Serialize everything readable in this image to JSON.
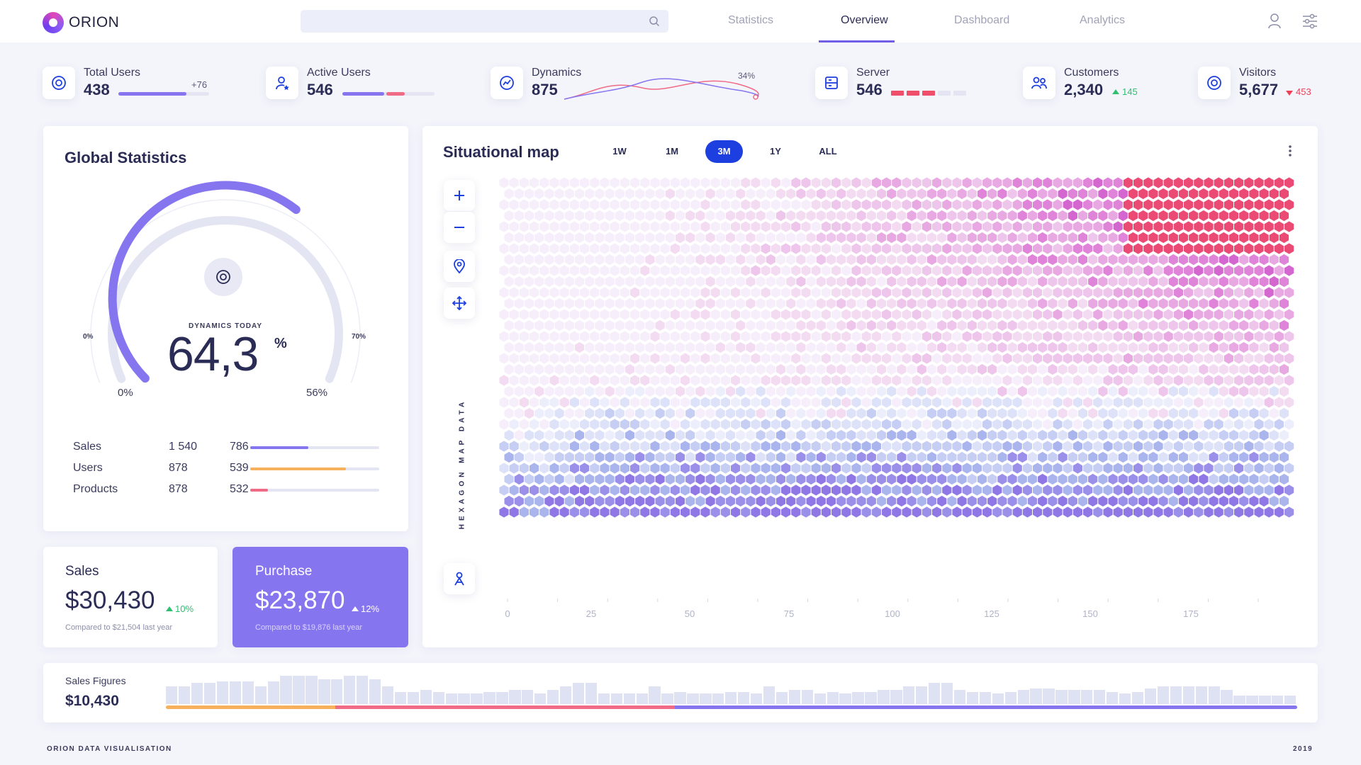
{
  "app": {
    "brand": "ORION"
  },
  "search": {
    "placeholder": ""
  },
  "nav": {
    "tabs": [
      {
        "label": "Statistics"
      },
      {
        "label": "Overview"
      },
      {
        "label": "Dashboard"
      },
      {
        "label": "Analytics"
      }
    ],
    "active": "Overview"
  },
  "stats": [
    {
      "label": "Total Users",
      "value": "438",
      "delta": "+76",
      "progress": 0.75
    },
    {
      "label": "Active Users",
      "value": "546",
      "progress": [
        0.45,
        0.2
      ]
    },
    {
      "label": "Dynamics",
      "value": "875",
      "delta": "34%"
    },
    {
      "label": "Server",
      "value": "546"
    },
    {
      "label": "Customers",
      "value": "2,340",
      "delta": "145",
      "trend": "up"
    },
    {
      "label": "Visitors",
      "value": "5,677",
      "delta": "453",
      "trend": "down"
    }
  ],
  "global": {
    "title": "Global Statistics",
    "caption": "DYNAMICS TODAY",
    "value": "64,3",
    "unit": "%",
    "outer_min": "0%",
    "outer_max": "70%",
    "inner_min": "0%",
    "inner_max": "56%",
    "gauge_level": 0.643,
    "rows": [
      {
        "label": "Sales",
        "a": "1 540",
        "b": "786",
        "progress": 0.45,
        "color": "#8576f0"
      },
      {
        "label": "Users",
        "a": "878",
        "b": "539",
        "progress": 0.74,
        "color": "#f7b05b"
      },
      {
        "label": "Products",
        "a": "878",
        "b": "532",
        "progress": 0.14,
        "color": "#f06b86"
      }
    ]
  },
  "sales": {
    "label": "Sales",
    "value": "$30,430",
    "delta": "10%",
    "note": "Compared to $21,504 last year"
  },
  "purchase": {
    "label": "Purchase",
    "value": "$23,870",
    "delta": "12%",
    "note": "Compared to $19,876 last year"
  },
  "map": {
    "title": "Situational map",
    "ranges": [
      "1W",
      "1M",
      "3M",
      "1Y",
      "ALL"
    ],
    "active_range": "3M",
    "side_label": "HEXAGON MAP DATA",
    "x_ticks": [
      "0",
      "25",
      "50",
      "75",
      "100",
      "125",
      "150",
      "175"
    ]
  },
  "sales_figures": {
    "label": "Sales Figures",
    "value": "$10,430",
    "bars": [
      1,
      1,
      1.2,
      1.2,
      1.3,
      1.3,
      1.3,
      1,
      1.3,
      1.6,
      1.6,
      1.6,
      1.4,
      1.4,
      1.6,
      1.6,
      1.4,
      1,
      0.7,
      0.7,
      0.8,
      0.7,
      0.6,
      0.6,
      0.6,
      0.7,
      0.7,
      0.8,
      0.8,
      0.6,
      0.8,
      1,
      1.2,
      1.2,
      0.6,
      0.6,
      0.6,
      0.6,
      1,
      0.6,
      0.7,
      0.6,
      0.6,
      0.6,
      0.7,
      0.7,
      0.6,
      1,
      0.7,
      0.8,
      0.8,
      0.6,
      0.7,
      0.6,
      0.7,
      0.7,
      0.8,
      0.8,
      1,
      1,
      1.2,
      1.2,
      0.8,
      0.7,
      0.7,
      0.6,
      0.7,
      0.8,
      0.9,
      0.9,
      0.8,
      0.8,
      0.8,
      0.8,
      0.7,
      0.6,
      0.7,
      0.9,
      1,
      1,
      1,
      1,
      1,
      0.8,
      0.5,
      0.5,
      0.5,
      0.5,
      0.5
    ],
    "segments": [
      {
        "fraction": 0.15,
        "color": "#f7b05b"
      },
      {
        "fraction": 0.3,
        "color": "#f06b86"
      },
      {
        "fraction": 0.55,
        "color": "#8576f0"
      }
    ]
  },
  "footer": {
    "left": "ORION DATA VISUALISATION",
    "right": "2019"
  },
  "colors": {
    "accent": "#8576f0",
    "active_tab": "#1d3fe0",
    "up": "#2fbf71",
    "down": "#ef3f57",
    "pink_high": "#ea4a73",
    "violet_high": "#8f78e6"
  }
}
